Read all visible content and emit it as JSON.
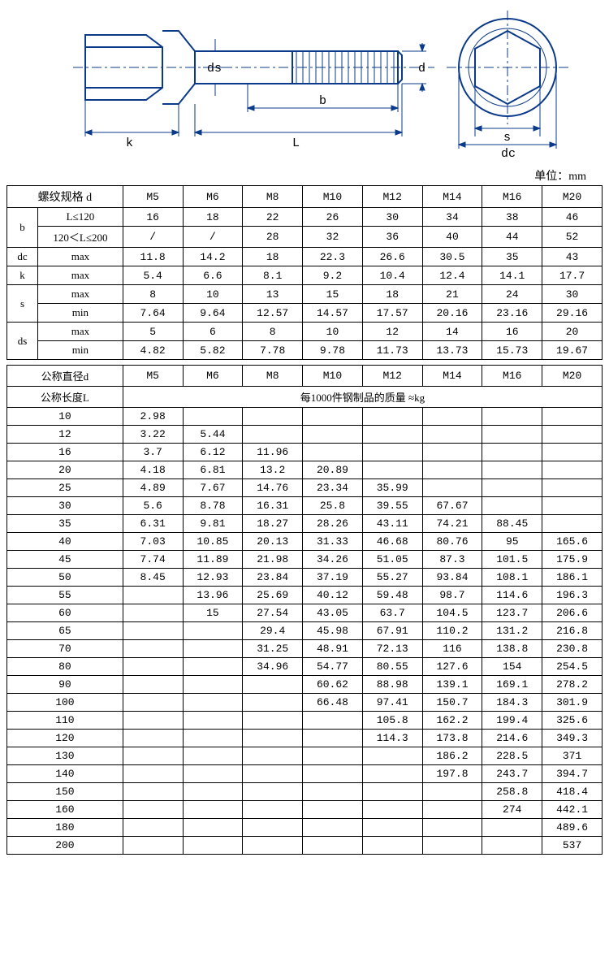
{
  "diagram": {
    "labels": {
      "ds": "ds",
      "d": "d",
      "b": "b",
      "k": "k",
      "L": "L",
      "s": "s",
      "dc": "dc"
    },
    "stroke": "#0b3a8a",
    "stroke_width": 2
  },
  "unit_label": "单位：mm",
  "table1": {
    "header_thread": "螺纹规格 d",
    "sizes": [
      "M5",
      "M6",
      "M8",
      "M10",
      "M12",
      "M14",
      "M16",
      "M20"
    ],
    "rows": [
      {
        "g": "b",
        "sub": "L≤120",
        "v": [
          "16",
          "18",
          "22",
          "26",
          "30",
          "34",
          "38",
          "46"
        ]
      },
      {
        "g": "",
        "sub": "120＜L≤200",
        "v": [
          "/",
          "/",
          "28",
          "32",
          "36",
          "40",
          "44",
          "52"
        ]
      },
      {
        "g": "dc",
        "sub": "max",
        "v": [
          "11.8",
          "14.2",
          "18",
          "22.3",
          "26.6",
          "30.5",
          "35",
          "43"
        ]
      },
      {
        "g": "k",
        "sub": "max",
        "v": [
          "5.4",
          "6.6",
          "8.1",
          "9.2",
          "10.4",
          "12.4",
          "14.1",
          "17.7"
        ]
      },
      {
        "g": "s",
        "sub": "max",
        "v": [
          "8",
          "10",
          "13",
          "15",
          "18",
          "21",
          "24",
          "30"
        ]
      },
      {
        "g": "",
        "sub": "min",
        "v": [
          "7.64",
          "9.64",
          "12.57",
          "14.57",
          "17.57",
          "20.16",
          "23.16",
          "29.16"
        ]
      },
      {
        "g": "ds",
        "sub": "max",
        "v": [
          "5",
          "6",
          "8",
          "10",
          "12",
          "14",
          "16",
          "20"
        ]
      },
      {
        "g": "",
        "sub": "min",
        "v": [
          "4.82",
          "5.82",
          "7.78",
          "9.78",
          "11.73",
          "13.73",
          "15.73",
          "19.67"
        ]
      }
    ]
  },
  "table2": {
    "header_dia": "公称直径d",
    "header_len": "公称长度L",
    "mass_header": "每1000件钢制品的质量 ≈kg",
    "sizes": [
      "M5",
      "M6",
      "M8",
      "M10",
      "M12",
      "M14",
      "M16",
      "M20"
    ],
    "rows": [
      {
        "len": "10",
        "v": [
          "2.98",
          "",
          "",
          "",
          "",
          "",
          "",
          ""
        ]
      },
      {
        "len": "12",
        "v": [
          "3.22",
          "5.44",
          "",
          "",
          "",
          "",
          "",
          ""
        ]
      },
      {
        "len": "16",
        "v": [
          "3.7",
          "6.12",
          "11.96",
          "",
          "",
          "",
          "",
          ""
        ]
      },
      {
        "len": "20",
        "v": [
          "4.18",
          "6.81",
          "13.2",
          "20.89",
          "",
          "",
          "",
          ""
        ]
      },
      {
        "len": "25",
        "v": [
          "4.89",
          "7.67",
          "14.76",
          "23.34",
          "35.99",
          "",
          "",
          ""
        ]
      },
      {
        "len": "30",
        "v": [
          "5.6",
          "8.78",
          "16.31",
          "25.8",
          "39.55",
          "67.67",
          "",
          ""
        ]
      },
      {
        "len": "35",
        "v": [
          "6.31",
          "9.81",
          "18.27",
          "28.26",
          "43.11",
          "74.21",
          "88.45",
          ""
        ]
      },
      {
        "len": "40",
        "v": [
          "7.03",
          "10.85",
          "20.13",
          "31.33",
          "46.68",
          "80.76",
          "95",
          "165.6"
        ]
      },
      {
        "len": "45",
        "v": [
          "7.74",
          "11.89",
          "21.98",
          "34.26",
          "51.05",
          "87.3",
          "101.5",
          "175.9"
        ]
      },
      {
        "len": "50",
        "v": [
          "8.45",
          "12.93",
          "23.84",
          "37.19",
          "55.27",
          "93.84",
          "108.1",
          "186.1"
        ]
      },
      {
        "len": "55",
        "v": [
          "",
          "13.96",
          "25.69",
          "40.12",
          "59.48",
          "98.7",
          "114.6",
          "196.3"
        ]
      },
      {
        "len": "60",
        "v": [
          "",
          "15",
          "27.54",
          "43.05",
          "63.7",
          "104.5",
          "123.7",
          "206.6"
        ]
      },
      {
        "len": "65",
        "v": [
          "",
          "",
          "29.4",
          "45.98",
          "67.91",
          "110.2",
          "131.2",
          "216.8"
        ]
      },
      {
        "len": "70",
        "v": [
          "",
          "",
          "31.25",
          "48.91",
          "72.13",
          "116",
          "138.8",
          "230.8"
        ]
      },
      {
        "len": "80",
        "v": [
          "",
          "",
          "34.96",
          "54.77",
          "80.55",
          "127.6",
          "154",
          "254.5"
        ]
      },
      {
        "len": "90",
        "v": [
          "",
          "",
          "",
          "60.62",
          "88.98",
          "139.1",
          "169.1",
          "278.2"
        ]
      },
      {
        "len": "100",
        "v": [
          "",
          "",
          "",
          "66.48",
          "97.41",
          "150.7",
          "184.3",
          "301.9"
        ]
      },
      {
        "len": "110",
        "v": [
          "",
          "",
          "",
          "",
          "105.8",
          "162.2",
          "199.4",
          "325.6"
        ]
      },
      {
        "len": "120",
        "v": [
          "",
          "",
          "",
          "",
          "114.3",
          "173.8",
          "214.6",
          "349.3"
        ]
      },
      {
        "len": "130",
        "v": [
          "",
          "",
          "",
          "",
          "",
          "186.2",
          "228.5",
          "371"
        ]
      },
      {
        "len": "140",
        "v": [
          "",
          "",
          "",
          "",
          "",
          "197.8",
          "243.7",
          "394.7"
        ]
      },
      {
        "len": "150",
        "v": [
          "",
          "",
          "",
          "",
          "",
          "",
          "258.8",
          "418.4"
        ]
      },
      {
        "len": "160",
        "v": [
          "",
          "",
          "",
          "",
          "",
          "",
          "274",
          "442.1"
        ]
      },
      {
        "len": "180",
        "v": [
          "",
          "",
          "",
          "",
          "",
          "",
          "",
          "489.6"
        ]
      },
      {
        "len": "200",
        "v": [
          "",
          "",
          "",
          "",
          "",
          "",
          "",
          "537"
        ]
      }
    ]
  }
}
